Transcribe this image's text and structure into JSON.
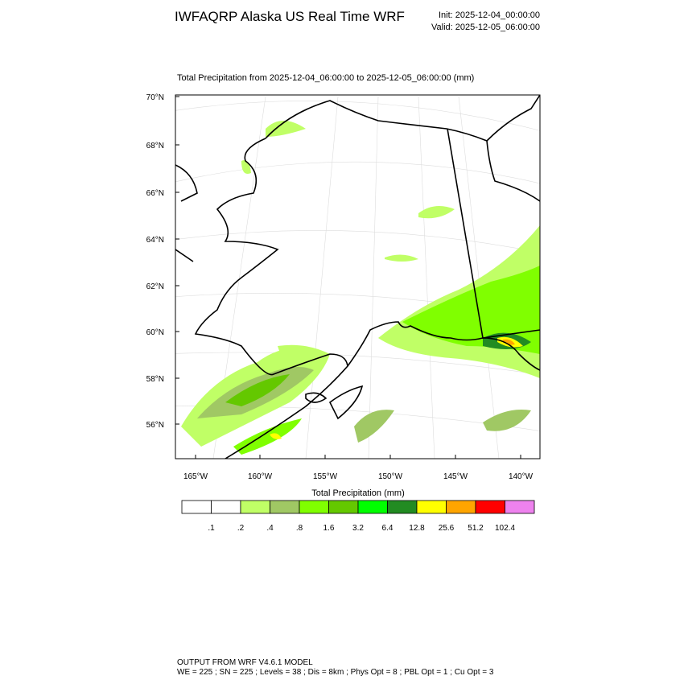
{
  "header": {
    "title": "IWFAQRP Alaska US Real Time WRF",
    "init": "Init: 2025-12-04_00:00:00",
    "valid": "Valid: 2025-12-05_06:00:00"
  },
  "map": {
    "title": "Total Precipitation from 2025-12-04_06:00:00 to 2025-12-05_06:00:00   (mm)",
    "lat_labels": [
      "70°N",
      "68°N",
      "66°N",
      "64°N",
      "62°N",
      "60°N",
      "58°N",
      "56°N"
    ],
    "lon_labels": [
      "165°W",
      "160°W",
      "155°W",
      "150°W",
      "145°W",
      "140°W"
    ]
  },
  "colorbar": {
    "title": "Total Precipitation  (mm)",
    "colors": [
      "#ffffff",
      "#ffffff",
      "#c0ff66",
      "#a0c864",
      "#80ff00",
      "#64c800",
      "#00ff00",
      "#228b22",
      "#ffff00",
      "#ffa500",
      "#ff0000",
      "#ee82ee"
    ],
    "labels": [
      ".1",
      ".2",
      ".4",
      ".8",
      "1.6",
      "3.2",
      "6.4",
      "12.8",
      "25.6",
      "51.2",
      "102.4"
    ]
  },
  "footer": {
    "line1": "OUTPUT FROM WRF V4.6.1 MODEL",
    "line2": "WE = 225 ; SN = 225 ; Levels = 38 ; Dis = 8km ; Phys Opt = 8 ; PBL Opt = 1 ; Cu Opt = 3"
  }
}
